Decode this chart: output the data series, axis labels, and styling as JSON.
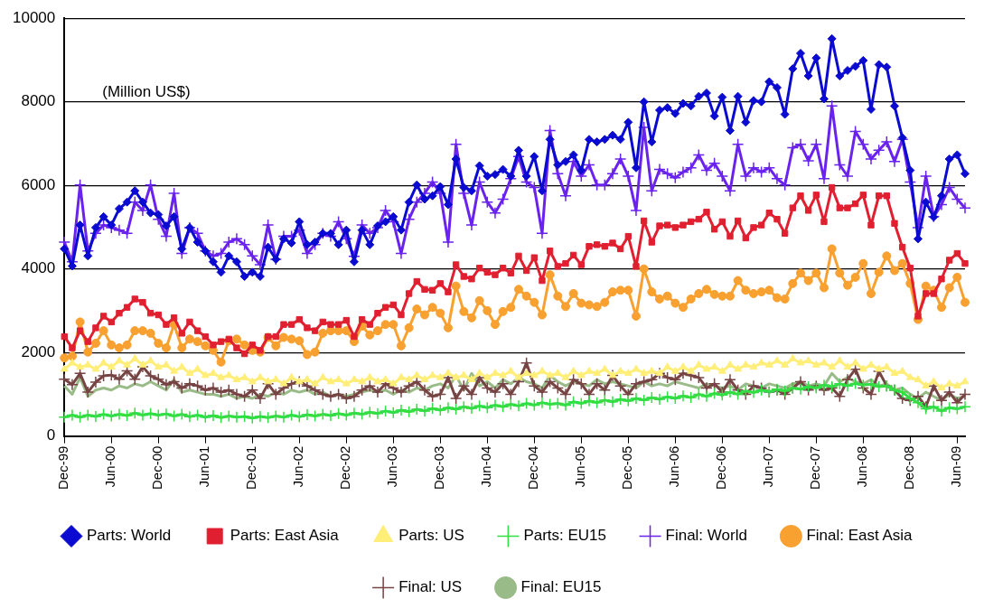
{
  "chart_data": {
    "type": "line",
    "categories": [
      "Dec-99",
      null,
      null,
      null,
      null,
      null,
      "Jun-00",
      null,
      null,
      null,
      null,
      null,
      "Dec-00",
      null,
      null,
      null,
      null,
      null,
      "Jun-01",
      null,
      null,
      null,
      null,
      null,
      "Dec-01",
      null,
      null,
      null,
      null,
      null,
      "Jun-02",
      null,
      null,
      null,
      null,
      null,
      "Dec-02",
      null,
      null,
      null,
      null,
      null,
      "Jun-03",
      null,
      null,
      null,
      null,
      null,
      "Dec-03",
      null,
      null,
      null,
      null,
      null,
      "Jun-04",
      null,
      null,
      null,
      null,
      null,
      "Dec-04",
      null,
      null,
      null,
      null,
      null,
      "Jun-05",
      null,
      null,
      null,
      null,
      null,
      "Dec-05",
      null,
      null,
      null,
      null,
      null,
      "Jun-06",
      null,
      null,
      null,
      null,
      null,
      "Dec-06",
      null,
      null,
      null,
      null,
      null,
      "Jun-07",
      null,
      null,
      null,
      null,
      null,
      "Dec-07",
      null,
      null,
      null,
      null,
      null,
      "Jun-08",
      null,
      null,
      null,
      null,
      null,
      "Dec-08",
      null,
      null,
      null,
      null,
      null,
      "Jun-09",
      null
    ],
    "ylim": [
      0,
      10000
    ],
    "yticks": [
      0,
      2000,
      4000,
      6000,
      8000,
      10000
    ],
    "grid": "y",
    "legend": "bottom",
    "annotations": [
      "(Million US$)"
    ],
    "series": [
      {
        "name": "Parts: World",
        "color": "#0a0ad0",
        "marker": "diamond",
        "values": [
          4480,
          4070,
          5050,
          4310,
          4990,
          5250,
          5050,
          5440,
          5600,
          5870,
          5600,
          5340,
          5300,
          5030,
          5250,
          4480,
          4990,
          4640,
          4430,
          4170,
          3920,
          4310,
          4170,
          3820,
          3920,
          3820,
          4520,
          4230,
          4720,
          4620,
          5130,
          4580,
          4640,
          4850,
          4850,
          4580,
          4930,
          4170,
          4930,
          4580,
          5030,
          5130,
          5250,
          4930,
          5600,
          6010,
          5670,
          5750,
          5970,
          5540,
          6630,
          5950,
          5870,
          6470,
          6220,
          6260,
          6380,
          6220,
          6840,
          6220,
          6690,
          5870,
          7100,
          6490,
          6570,
          6730,
          6360,
          7100,
          7040,
          7100,
          7200,
          7100,
          7510,
          6420,
          8000,
          7040,
          7800,
          7860,
          7720,
          7960,
          7900,
          8130,
          8210,
          7660,
          8110,
          7310,
          8130,
          7510,
          8030,
          8000,
          8480,
          8340,
          7700,
          8790,
          9160,
          8620,
          9050,
          8070,
          9510,
          8620,
          8750,
          8850,
          8990,
          7820,
          8890,
          8830,
          7900,
          7140,
          6360,
          4720,
          5600,
          5240,
          5750,
          6630,
          6730,
          6280
        ]
      },
      {
        "name": "Parts: East Asia",
        "color": "#e02030",
        "marker": "square",
        "values": [
          2380,
          2110,
          2520,
          2260,
          2590,
          2870,
          2730,
          2940,
          3080,
          3280,
          3200,
          2940,
          2900,
          2670,
          2830,
          2460,
          2730,
          2520,
          2380,
          2180,
          2260,
          2320,
          2110,
          1970,
          2180,
          2050,
          2380,
          2380,
          2670,
          2670,
          2790,
          2590,
          2520,
          2730,
          2670,
          2670,
          2770,
          2380,
          2790,
          2670,
          2940,
          3080,
          3140,
          2900,
          3410,
          3700,
          3510,
          3490,
          3650,
          3450,
          4100,
          3820,
          3760,
          4020,
          3920,
          3860,
          4020,
          3900,
          4310,
          3960,
          4270,
          3720,
          4430,
          4060,
          4130,
          4330,
          4100,
          4540,
          4580,
          4540,
          4620,
          4480,
          4780,
          4060,
          5150,
          4640,
          5030,
          5050,
          4990,
          5050,
          5130,
          5190,
          5360,
          4950,
          5130,
          4780,
          5150,
          4740,
          4990,
          5050,
          5340,
          5190,
          4850,
          5460,
          5750,
          5400,
          5770,
          5130,
          5950,
          5460,
          5460,
          5560,
          5770,
          5050,
          5750,
          5750,
          5090,
          4520,
          4020,
          2870,
          3410,
          3410,
          3760,
          4210,
          4370,
          4130
        ]
      },
      {
        "name": "Parts: US",
        "color": "#ffee77",
        "marker": "triangle",
        "values": [
          1600,
          1750,
          1650,
          1700,
          1600,
          1750,
          1650,
          1800,
          1700,
          1850,
          1700,
          1800,
          1650,
          1700,
          1550,
          1650,
          1500,
          1600,
          1450,
          1500,
          1400,
          1450,
          1350,
          1400,
          1300,
          1400,
          1300,
          1350,
          1250,
          1400,
          1300,
          1350,
          1250,
          1400,
          1300,
          1350,
          1250,
          1350,
          1300,
          1400,
          1300,
          1350,
          1250,
          1400,
          1350,
          1450,
          1350,
          1450,
          1400,
          1500,
          1400,
          1450,
          1350,
          1500,
          1400,
          1500,
          1450,
          1550,
          1400,
          1500,
          1450,
          1550,
          1450,
          1500,
          1400,
          1550,
          1450,
          1550,
          1500,
          1600,
          1450,
          1550,
          1500,
          1600,
          1500,
          1550,
          1500,
          1650,
          1550,
          1650,
          1550,
          1700,
          1600,
          1650,
          1550,
          1700,
          1600,
          1700,
          1650,
          1750,
          1700,
          1800,
          1700,
          1850,
          1750,
          1800,
          1700,
          1750,
          1650,
          1800,
          1650,
          1750,
          1600,
          1700,
          1600,
          1650,
          1500,
          1550,
          1400,
          1350,
          1200,
          1300,
          1150,
          1250,
          1200,
          1300
        ]
      },
      {
        "name": "Parts: EU15",
        "color": "#33dd44",
        "marker": "cross",
        "values": [
          450,
          500,
          450,
          500,
          470,
          520,
          480,
          520,
          490,
          550,
          500,
          540,
          500,
          530,
          480,
          520,
          460,
          500,
          450,
          490,
          440,
          480,
          450,
          470,
          430,
          470,
          440,
          480,
          450,
          500,
          460,
          510,
          480,
          520,
          490,
          540,
          500,
          550,
          520,
          570,
          540,
          600,
          560,
          620,
          580,
          640,
          600,
          660,
          620,
          680,
          640,
          700,
          660,
          720,
          680,
          740,
          700,
          760,
          720,
          780,
          740,
          800,
          760,
          780,
          740,
          820,
          780,
          840,
          800,
          860,
          820,
          880,
          840,
          900,
          860,
          920,
          880,
          940,
          900,
          960,
          920,
          1000,
          950,
          1020,
          980,
          1050,
          1000,
          1080,
          1040,
          1100,
          1060,
          1120,
          1080,
          1150,
          1120,
          1180,
          1150,
          1220,
          1180,
          1250,
          1200,
          1260,
          1220,
          1240,
          1180,
          1200,
          1100,
          1050,
          900,
          800,
          650,
          700,
          600,
          680,
          650,
          700
        ]
      },
      {
        "name": "Final: World",
        "color": "#6a22ee",
        "marker": "cross",
        "values": [
          4640,
          4170,
          6010,
          4430,
          4850,
          5050,
          4990,
          4930,
          4850,
          5600,
          5400,
          6010,
          5190,
          4780,
          5810,
          4370,
          4990,
          4850,
          4430,
          4310,
          4370,
          4640,
          4720,
          4580,
          4310,
          4100,
          5050,
          4230,
          4780,
          4780,
          4930,
          4370,
          4580,
          4850,
          4780,
          5130,
          4720,
          4300,
          5050,
          4850,
          4990,
          5400,
          5130,
          4370,
          5190,
          5600,
          5810,
          6080,
          5810,
          4640,
          6980,
          5810,
          5050,
          6080,
          5600,
          5340,
          5670,
          6160,
          6690,
          6080,
          5950,
          4850,
          7310,
          6280,
          5750,
          6570,
          6220,
          6490,
          6010,
          6010,
          6280,
          6630,
          6220,
          5400,
          7390,
          5870,
          6380,
          6280,
          6180,
          6320,
          6420,
          6730,
          6360,
          6530,
          6220,
          5870,
          6980,
          6220,
          6420,
          6320,
          6420,
          6160,
          6010,
          6900,
          6980,
          6590,
          6980,
          6160,
          7900,
          6490,
          6220,
          7290,
          6980,
          6630,
          6840,
          7040,
          6570,
          7100,
          6080,
          4990,
          6220,
          5250,
          5540,
          5950,
          5670,
          5460
        ]
      },
      {
        "name": "Final: East Asia",
        "color": "#f8a030",
        "marker": "circle",
        "values": [
          1870,
          1910,
          2730,
          2010,
          2220,
          2520,
          2180,
          2110,
          2180,
          2520,
          2520,
          2460,
          2220,
          2110,
          2670,
          2110,
          2320,
          2260,
          2160,
          2050,
          1770,
          2280,
          2320,
          2180,
          2050,
          2010,
          2360,
          2160,
          2360,
          2320,
          2280,
          1950,
          2010,
          2460,
          2520,
          2520,
          2520,
          2260,
          2630,
          2420,
          2520,
          2670,
          2670,
          2160,
          2590,
          3040,
          2900,
          3080,
          2940,
          2590,
          3590,
          2980,
          2830,
          3240,
          3000,
          2670,
          2980,
          3080,
          3510,
          3350,
          3200,
          2900,
          3860,
          3350,
          3100,
          3410,
          3180,
          3140,
          3100,
          3200,
          3450,
          3490,
          3490,
          2870,
          4000,
          3450,
          3280,
          3350,
          3180,
          3080,
          3280,
          3410,
          3510,
          3390,
          3350,
          3350,
          3720,
          3490,
          3410,
          3450,
          3490,
          3310,
          3280,
          3650,
          3900,
          3720,
          3900,
          3550,
          4480,
          3900,
          3610,
          3800,
          4130,
          3410,
          3920,
          4310,
          3960,
          4130,
          3650,
          2790,
          3590,
          3490,
          3080,
          3550,
          3800,
          3200
        ]
      },
      {
        "name": "Final: US",
        "color": "#774444",
        "marker": "cross",
        "values": [
          1360,
          1230,
          1500,
          1050,
          1290,
          1440,
          1460,
          1360,
          1560,
          1360,
          1660,
          1440,
          1360,
          1230,
          1300,
          1150,
          1250,
          1200,
          1100,
          1150,
          1050,
          1100,
          1000,
          950,
          1100,
          900,
          1250,
          1000,
          1150,
          1250,
          1300,
          1200,
          1100,
          1000,
          950,
          1000,
          900,
          950,
          1100,
          1200,
          1050,
          1250,
          1150,
          1050,
          1200,
          1300,
          1100,
          950,
          1000,
          1400,
          900,
          1200,
          1000,
          1400,
          1150,
          1050,
          1250,
          1000,
          1300,
          1750,
          1200,
          1050,
          1300,
          1150,
          1000,
          1350,
          1250,
          1000,
          1250,
          1100,
          1450,
          1200,
          1000,
          1250,
          1300,
          1350,
          1500,
          1400,
          1350,
          1500,
          1450,
          1400,
          1150,
          1250,
          1050,
          1350,
          1100,
          1000,
          1200,
          1150,
          1050,
          1100,
          1000,
          1150,
          1300,
          1100,
          1200,
          1100,
          1150,
          950,
          1350,
          1600,
          1150,
          1000,
          1550,
          1200,
          1100,
          900,
          850,
          950,
          700,
          1200,
          850,
          1050,
          800,
          1000
        ]
      },
      {
        "name": "Final: EU15",
        "color": "#99bb88",
        "marker": "none",
        "values": [
          1200,
          1000,
          1400,
          950,
          1100,
          1150,
          1100,
          1200,
          1150,
          1250,
          1200,
          1300,
          1200,
          1100,
          1350,
          1050,
          1100,
          1050,
          1000,
          1000,
          950,
          1000,
          900,
          950,
          900,
          1000,
          950,
          1050,
          1000,
          1100,
          1050,
          1100,
          1000,
          1050,
          950,
          1000,
          950,
          1000,
          1050,
          1100,
          1050,
          1100,
          1000,
          1100,
          1050,
          1150,
          1100,
          1200,
          1250,
          1150,
          1450,
          1100,
          1500,
          1200,
          1300,
          1150,
          1350,
          1250,
          1400,
          1300,
          1250,
          1150,
          1450,
          1300,
          1200,
          1300,
          1250,
          1200,
          1350,
          1250,
          1300,
          1250,
          1200,
          1150,
          1300,
          1200,
          1250,
          1200,
          1300,
          1250,
          1200,
          1150,
          1250,
          1200,
          1150,
          1200,
          1100,
          1250,
          1200,
          1150,
          1250,
          1200,
          1150,
          1250,
          1300,
          1200,
          1250,
          1200,
          1500,
          1300,
          1400,
          1300,
          1250,
          1350,
          1200,
          1250,
          1100,
          1150,
          1000,
          900,
          1050,
          950,
          850,
          1000,
          900,
          950
        ]
      }
    ]
  }
}
